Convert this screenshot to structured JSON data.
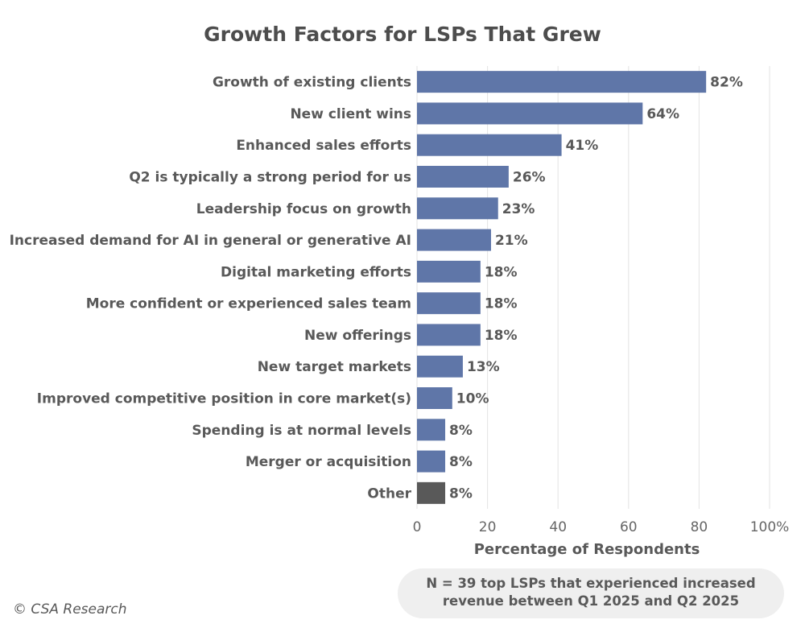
{
  "chart_data": {
    "type": "bar",
    "orientation": "horizontal",
    "title": "Growth Factors for LSPs That Grew",
    "xlabel": "Percentage of Respondents",
    "ylabel": "",
    "xlim": [
      0,
      100
    ],
    "xticks": [
      "0",
      "20",
      "40",
      "60",
      "80",
      "100%"
    ],
    "grid": true,
    "categories": [
      "Growth of existing clients",
      "New client wins",
      "Enhanced sales efforts",
      "Q2 is typically a strong period for us",
      "Leadership focus on growth",
      "Increased demand for AI in general or generative AI",
      "Digital marketing efforts",
      "More confident or experienced sales team",
      "New offerings",
      "New target markets",
      "Improved competitive position in core market(s)",
      "Spending is at normal levels",
      "Merger or acquisition",
      "Other"
    ],
    "values": [
      82,
      64,
      41,
      26,
      23,
      21,
      18,
      18,
      18,
      13,
      10,
      8,
      8,
      8
    ],
    "data_labels": [
      "82%",
      "64%",
      "41%",
      "26%",
      "23%",
      "21%",
      "18%",
      "18%",
      "18%",
      "13%",
      "10%",
      "8%",
      "8%",
      "8%"
    ],
    "colors": {
      "bar": "#5f76a8",
      "other_bar": "#595959",
      "grid": "#e3e3e3",
      "text": "#595959"
    }
  },
  "footnote": {
    "line1": "N = 39 top LSPs that experienced increased",
    "line2": "revenue between Q1 2025 and Q2 2025"
  },
  "copyright": "© CSA Research"
}
